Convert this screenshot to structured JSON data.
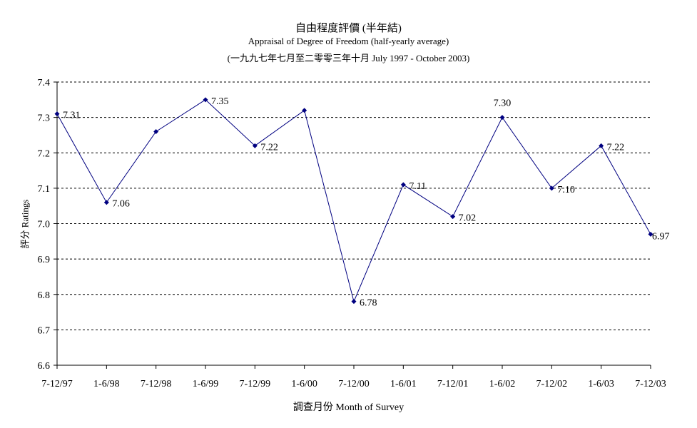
{
  "chart_data": {
    "type": "line",
    "title": "自由程度評價 (半年結)",
    "subtitle": "Appraisal of Degree of Freedom  (half-yearly average)",
    "subtitle2": "(一九九七年七月至二零零三年十月 July 1997 - October 2003)",
    "xlabel": "調查月份 Month of Survey",
    "ylabel": "評分 Ratings",
    "ylim": [
      6.6,
      7.4
    ],
    "yticks": [
      "6.6",
      "6.7",
      "6.8",
      "6.9",
      "7.0",
      "7.1",
      "7.2",
      "7.3",
      "7.4"
    ],
    "grid": "horizontal dashed",
    "categories": [
      "7-12/97",
      "1-6/98",
      "7-12/98",
      "1-6/99",
      "7-12/99",
      "1-6/00",
      "7-12/00",
      "1-6/01",
      "7-12/01",
      "1-6/02",
      "7-12/02",
      "1-6/03",
      "7-12/03"
    ],
    "series": [
      {
        "values": [
          7.31,
          7.06,
          7.26,
          7.35,
          7.22,
          7.32,
          6.78,
          7.11,
          7.02,
          7.3,
          7.1,
          7.22,
          6.97
        ],
        "labels": [
          "7.31",
          "7.06",
          "",
          "7.35",
          "7.22",
          "",
          "6.78",
          "7.11",
          "7.02",
          "7.30",
          "7.10",
          "7.22",
          "6.97"
        ],
        "color": "#000080"
      }
    ]
  }
}
